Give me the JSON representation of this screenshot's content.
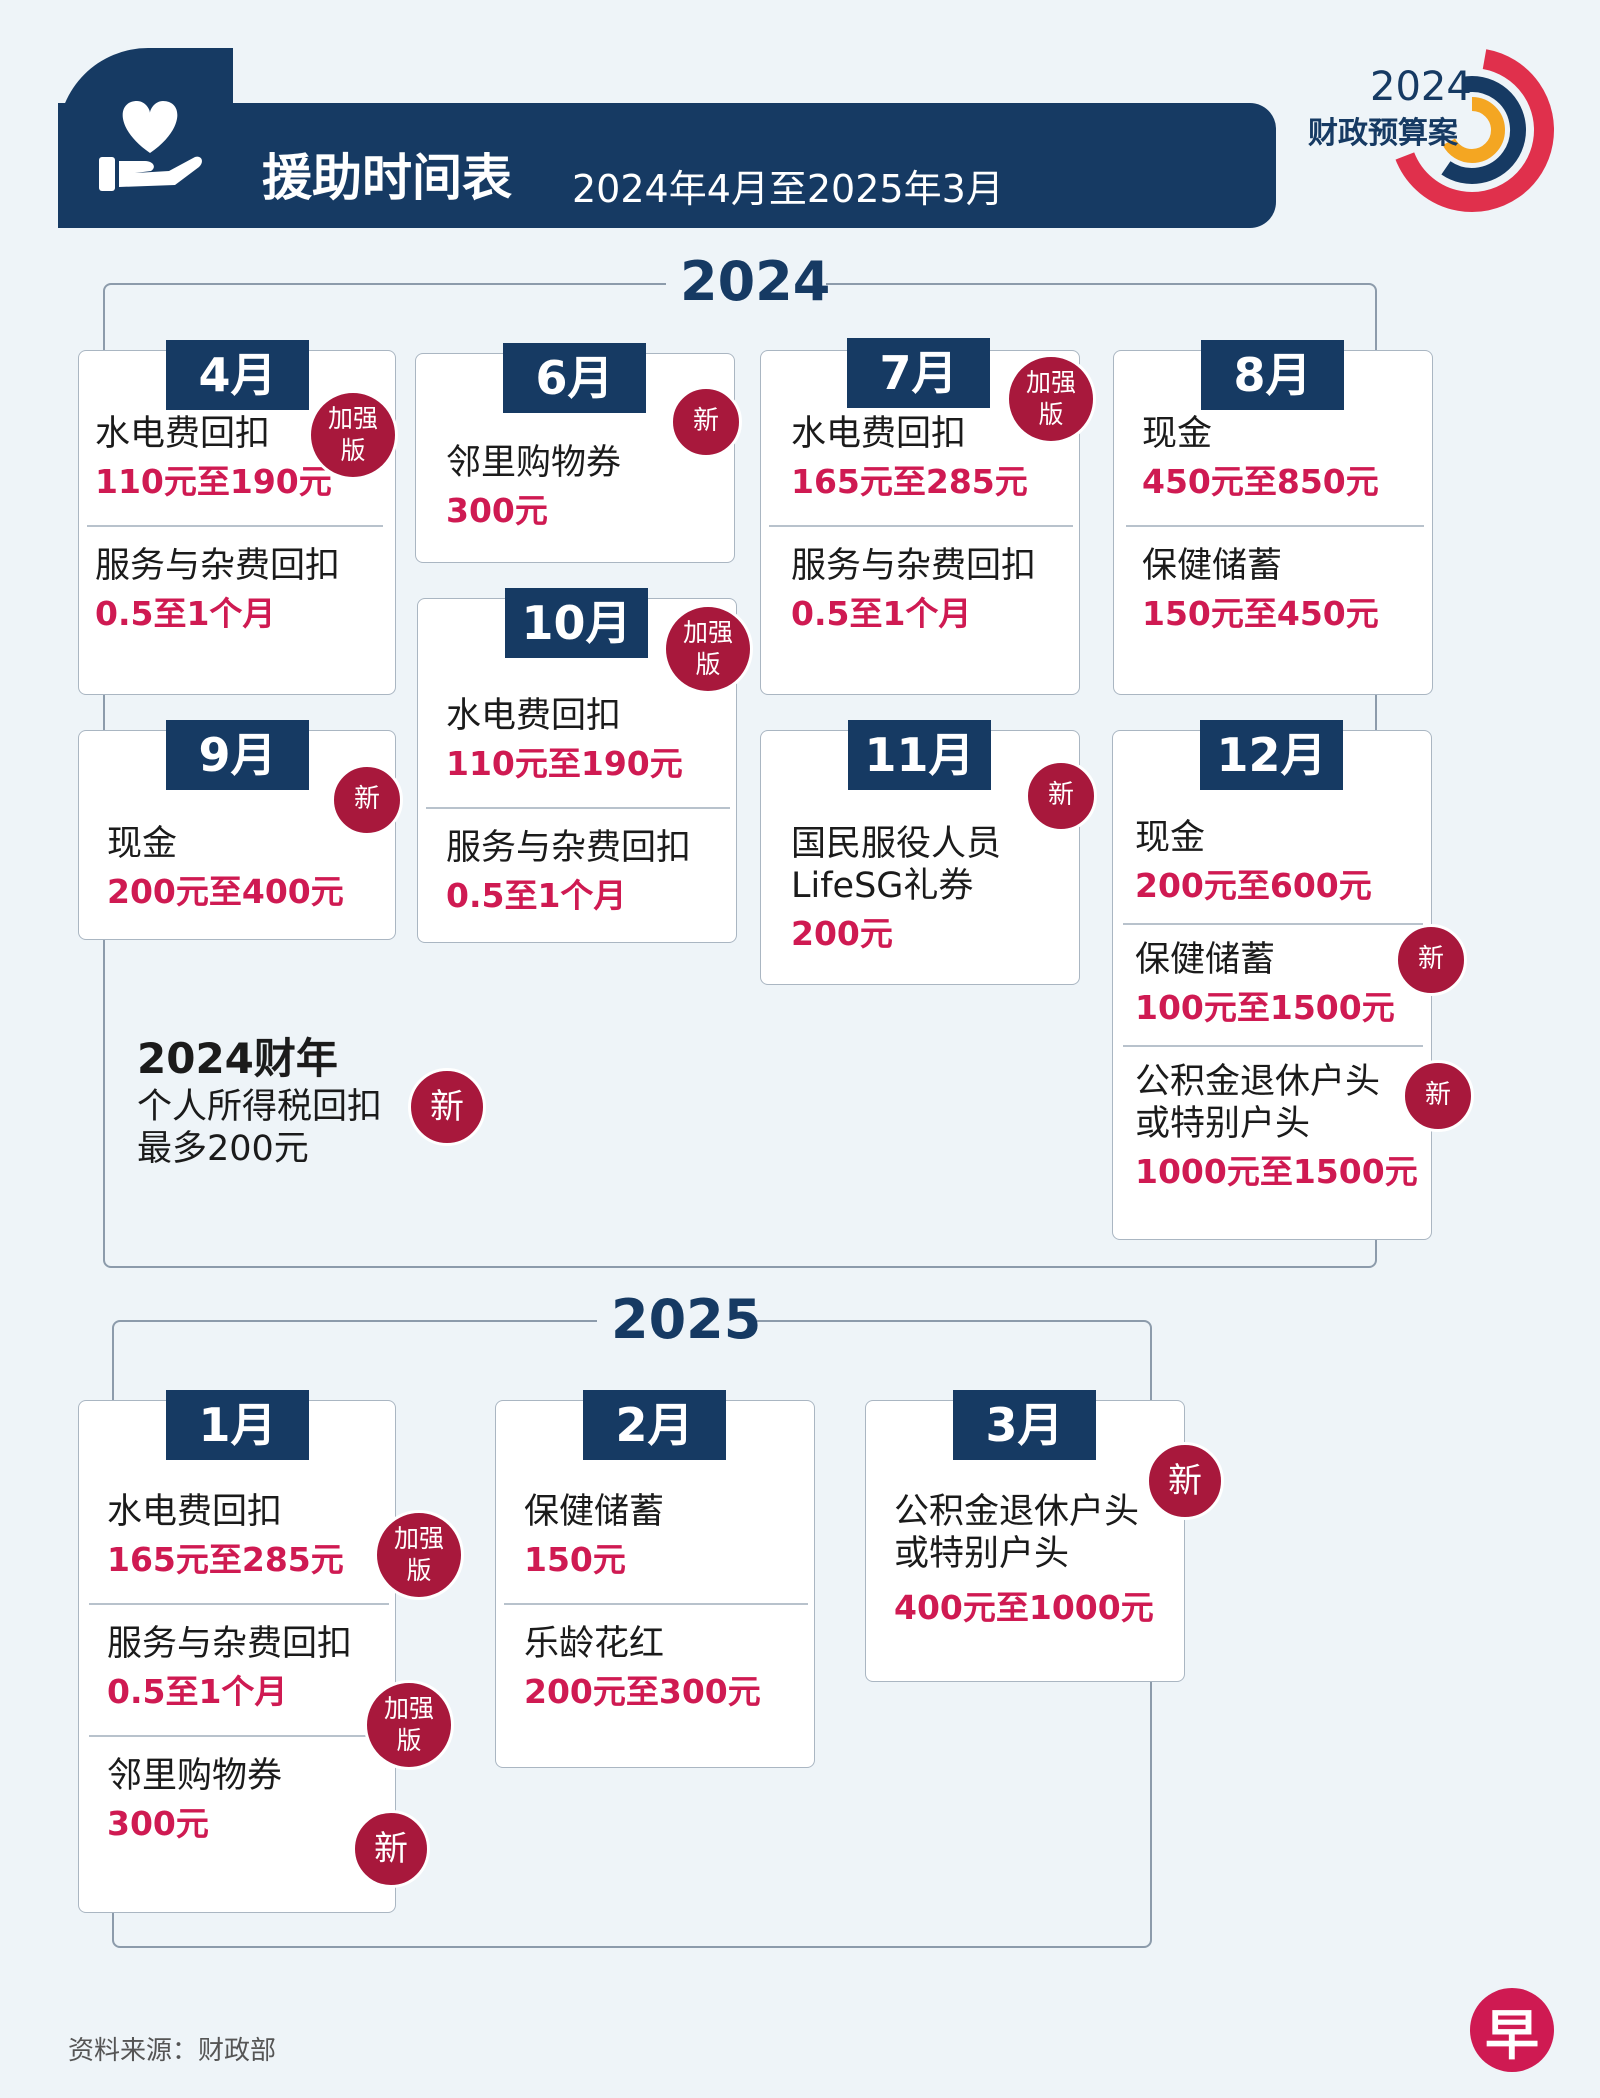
{
  "header": {
    "title": "援助时间表",
    "subtitle": "2024年4月至2025年3月",
    "logo_year": "2024",
    "logo_text": "财政预算案",
    "icon": "heart-hand-icon"
  },
  "colors": {
    "navy": "#163a63",
    "accent": "#cf1a52",
    "badge": "#a8183c"
  },
  "badges": {
    "new": "新",
    "enhanced_1": "加强",
    "enhanced_2": "版"
  },
  "y2024": {
    "year": "2024",
    "apr": {
      "month": "4月",
      "i1_label": "水电费回扣",
      "i1_value": "110元至190元",
      "i2_label": "服务与杂费回扣",
      "i2_value": "0.5至1个月"
    },
    "jun": {
      "month": "6月",
      "i1_label": "邻里购物券",
      "i1_value": "300元"
    },
    "jul": {
      "month": "7月",
      "i1_label": "水电费回扣",
      "i1_value": "165元至285元",
      "i2_label": "服务与杂费回扣",
      "i2_value": "0.5至1个月"
    },
    "aug": {
      "month": "8月",
      "i1_label": "现金",
      "i1_value": "450元至850元",
      "i2_label": "保健储蓄",
      "i2_value": "150元至450元"
    },
    "sep": {
      "month": "9月",
      "i1_label": "现金",
      "i1_value": "200元至400元"
    },
    "oct": {
      "month": "10月",
      "i1_label": "水电费回扣",
      "i1_value": "110元至190元",
      "i2_label": "服务与杂费回扣",
      "i2_value": "0.5至1个月"
    },
    "nov": {
      "month": "11月",
      "i1_label_1": "国民服役人员",
      "i1_label_2": "LifeSG礼券",
      "i1_value": "200元"
    },
    "dec": {
      "month": "12月",
      "i1_label": "现金",
      "i1_value": "200元至600元",
      "i2_label": "保健储蓄",
      "i2_value": "100元至1500元",
      "i3_label_1": "公积金退休户头",
      "i3_label_2": "或特别户头",
      "i3_value": "1000元至1500元"
    },
    "tax": {
      "title": "2024财年",
      "line1": "个人所得税回扣",
      "line2": "最多200元"
    }
  },
  "y2025": {
    "year": "2025",
    "jan": {
      "month": "1月",
      "i1_label": "水电费回扣",
      "i1_value": "165元至285元",
      "i2_label": "服务与杂费回扣",
      "i2_value": "0.5至1个月",
      "i3_label": "邻里购物券",
      "i3_value": "300元"
    },
    "feb": {
      "month": "2月",
      "i1_label": "保健储蓄",
      "i1_value": "150元",
      "i2_label": "乐龄花红",
      "i2_value": "200元至300元"
    },
    "mar": {
      "month": "3月",
      "i1_label_1": "公积金退休户头",
      "i1_label_2": "或特别户头",
      "i1_value": "400元至1000元"
    }
  },
  "footer": {
    "source": "资料来源：财政部",
    "brand": "早"
  }
}
